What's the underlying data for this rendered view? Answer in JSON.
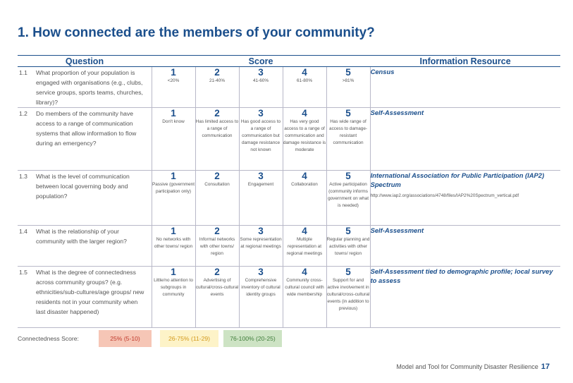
{
  "title": "1. How connected are the members of your community?",
  "table": {
    "headers": [
      "Question",
      "Score",
      "Information Resource"
    ],
    "rows": [
      {
        "number": "1.1",
        "question": "What proportion of your population is engaged with organisations (e.g., clubs, service groups, sports teams, churches, library)?",
        "scores": [
          {
            "score": 1,
            "label": "<20%"
          },
          {
            "score": 2,
            "label": "21-40%"
          },
          {
            "score": 3,
            "label": "41-60%"
          },
          {
            "score": 4,
            "label": "61-80%"
          },
          {
            "score": 5,
            "label": ">81%"
          }
        ],
        "resource": "Census"
      },
      {
        "number": "1.2",
        "question": "Do members of the community have access to a range of communication systems that allow information to flow during an emergency?",
        "scores": [
          {
            "score": 1,
            "label": "Don't know"
          },
          {
            "score": 2,
            "label": "Has limited access to a range of communication"
          },
          {
            "score": 3,
            "label": "Has good access to a range of communication but damage resistance not known"
          },
          {
            "score": 4,
            "label": "Has very good access to a range of communication and damage resistance is moderate"
          },
          {
            "score": 5,
            "label": "Has wide range of access to damage-resistant communication"
          }
        ],
        "resource": "Self-Assessment"
      },
      {
        "number": "1.3",
        "question": "What is the level of communication between local governing body and population?",
        "scores": [
          {
            "score": 1,
            "label": "Passive (government participation only)"
          },
          {
            "score": 2,
            "label": "Consultation"
          },
          {
            "score": 3,
            "label": "Engagement"
          },
          {
            "score": 4,
            "label": "Collaboration"
          },
          {
            "score": 5,
            "label": "Active participation (community informs government on what is needed)"
          }
        ],
        "resource": "International Association for Public Participation (IAP2) Spectrum",
        "url": "http://www.iap2.org/associations/4748/files/IAP2%20Spectrum_vertical.pdf"
      },
      {
        "number": "1.4",
        "question": "What is the relationship of your community with the larger region?",
        "scores": [
          {
            "score": 1,
            "label": "No networks with other towns/ region"
          },
          {
            "score": 2,
            "label": "Informal networks with other towns/ region"
          },
          {
            "score": 3,
            "label": "Some representation at regional meetings"
          },
          {
            "score": 4,
            "label": "Multiple representation at regional meetings"
          },
          {
            "score": 5,
            "label": "Regular planning and activities with other towns/ region"
          }
        ],
        "resource": "Self-Assessment"
      },
      {
        "number": "1.5",
        "question": "What is the degree of connectedness across community groups? (e.g. ethnicities/sub-cultures/age groups/ new residents not in your community when last disaster happened)",
        "scores": [
          {
            "score": 1,
            "label": "Little/no attention to subgroups in community"
          },
          {
            "score": 2,
            "label": "Advertising of cultural/cross-cultural events"
          },
          {
            "score": 3,
            "label": "Comprehensive inventory of cultural identity groups"
          },
          {
            "score": 4,
            "label": "Community cross-cultural council with wide membership"
          },
          {
            "score": 5,
            "label": "Support for and active involvement in cultural/cross-cultural events (in addition to previous)"
          }
        ],
        "resource": "Self-Assessment tied to demographic profile; local survey to assess"
      }
    ]
  },
  "legend": {
    "label": "Connectedness Score:",
    "items": [
      {
        "label": "25% (5-10)",
        "color": "#f6c6b6",
        "text_color": "#c0392b"
      },
      {
        "label": "26-75% (11-29)",
        "color": "#fdf3c8",
        "text_color": "#d39a1c"
      },
      {
        "label": "76-100% (20-25)",
        "color": "#cde3c4",
        "text_color": "#3f7d3a"
      }
    ]
  },
  "footer": {
    "text": "Model and Tool for Community Disaster Resilience",
    "page": 17
  }
}
